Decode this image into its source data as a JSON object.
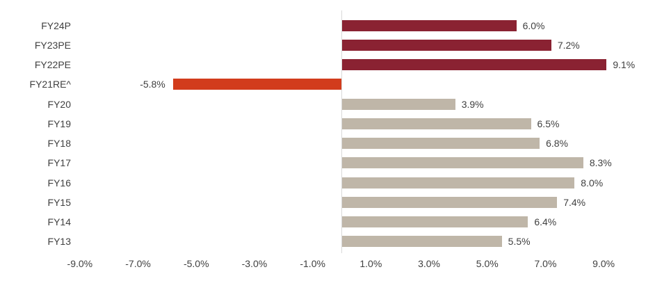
{
  "chart_data": {
    "type": "bar",
    "orientation": "horizontal",
    "categories": [
      "FY24P",
      "FY23PE",
      "FY22PE",
      "FY21RE^",
      "FY20",
      "FY19",
      "FY18",
      "FY17",
      "FY16",
      "FY15",
      "FY14",
      "FY13"
    ],
    "values": [
      6.0,
      7.2,
      9.1,
      -5.8,
      3.9,
      6.5,
      6.8,
      8.3,
      8.0,
      7.4,
      6.4,
      5.5
    ],
    "data_labels": [
      "6.0%",
      "7.2%",
      "9.1%",
      "-5.8%",
      "3.9%",
      "6.5%",
      "6.8%",
      "8.3%",
      "8.0%",
      "7.4%",
      "6.4%",
      "5.5%"
    ],
    "bar_colors": [
      "#8A2232",
      "#8A2232",
      "#8A2232",
      "#D23C1C",
      "#BFB6A8",
      "#BFB6A8",
      "#BFB6A8",
      "#BFB6A8",
      "#BFB6A8",
      "#BFB6A8",
      "#BFB6A8",
      "#BFB6A8"
    ],
    "x_ticks": [
      {
        "label": "-9.0%",
        "value": -9
      },
      {
        "label": "-7.0%",
        "value": -7
      },
      {
        "label": "-5.0%",
        "value": -5
      },
      {
        "label": "-3.0%",
        "value": -3
      },
      {
        "label": "-1.0%",
        "value": -1
      },
      {
        "label": "1.0%",
        "value": 1
      },
      {
        "label": "3.0%",
        "value": 3
      },
      {
        "label": "5.0%",
        "value": 5
      },
      {
        "label": "7.0%",
        "value": 7
      },
      {
        "label": "9.0%",
        "value": 9
      }
    ],
    "xlim": [
      -10,
      10
    ],
    "grid": false,
    "legend": false,
    "colors": {
      "dark_red_series": "#8A2232",
      "orange_negative": "#D23C1C",
      "tan_historical": "#BFB6A8",
      "axis_line": "#D9D9D9",
      "text": "#3F3F3F",
      "background": "#FFFFFF"
    }
  }
}
